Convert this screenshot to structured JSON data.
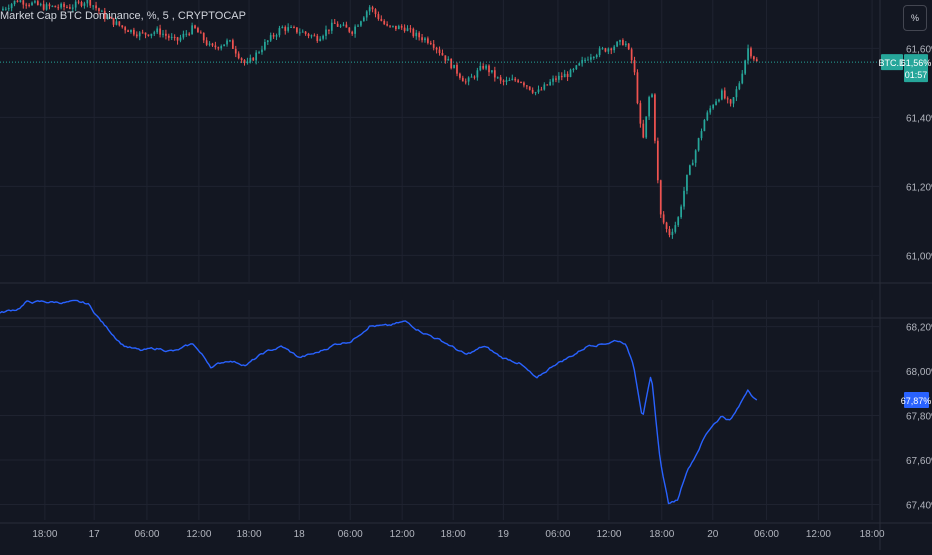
{
  "header": {
    "title": "Market Cap BTC Dominance, %, 5 , CRYPTOCAP",
    "scale_button": "%"
  },
  "colors": {
    "background": "#131722",
    "grid": "#1f2330",
    "up_candle": "#26a69a",
    "down_candle": "#ef5350",
    "price_line": "#26a69a",
    "lower_series": "#2962ff",
    "axis_text": "#b2b5be"
  },
  "chart_data": [
    {
      "type": "candlestick",
      "symbol_tag": "BTC.D",
      "last_value": "61,56%",
      "countdown": "01:57",
      "y_ticks": [
        {
          "value": 61.6,
          "label": "61,60%"
        },
        {
          "value": 61.4,
          "label": "61,40%"
        },
        {
          "value": 61.2,
          "label": "61,20%"
        },
        {
          "value": 61.0,
          "label": "61,00%"
        }
      ],
      "ylim": [
        60.92,
        61.74
      ],
      "last": 61.56,
      "path_x": [
        0,
        0.02,
        0.05,
        0.08,
        0.1,
        0.12,
        0.14,
        0.16,
        0.18,
        0.2,
        0.22,
        0.24,
        0.26,
        0.28,
        0.3,
        0.32,
        0.34,
        0.36,
        0.38,
        0.4,
        0.42,
        0.44,
        0.46,
        0.47,
        0.49,
        0.51,
        0.53,
        0.55,
        0.57,
        0.59,
        0.61,
        0.63,
        0.65,
        0.67,
        0.69,
        0.7,
        0.71,
        0.72,
        0.73,
        0.74,
        0.75,
        0.76,
        0.77,
        0.78,
        0.79,
        0.8,
        0.81,
        0.82,
        0.83,
        0.84,
        0.85,
        0.86
      ],
      "path_y": [
        61.71,
        61.74,
        61.72,
        61.72,
        61.74,
        61.69,
        61.66,
        61.64,
        61.65,
        61.62,
        61.66,
        61.6,
        61.62,
        61.55,
        61.61,
        61.66,
        61.65,
        61.63,
        61.67,
        61.65,
        61.72,
        61.66,
        61.66,
        61.64,
        61.62,
        61.56,
        61.5,
        61.55,
        61.5,
        61.51,
        61.47,
        61.51,
        61.53,
        61.58,
        61.6,
        61.61,
        61.62,
        61.55,
        61.32,
        61.5,
        61.12,
        61.06,
        61.1,
        61.22,
        61.3,
        61.39,
        61.44,
        61.47,
        61.43,
        61.5,
        61.6,
        61.56
      ]
    },
    {
      "type": "line",
      "last_value": "67,87%",
      "y_ticks": [
        {
          "value": 68.2,
          "label": "68,20%"
        },
        {
          "value": 68.0,
          "label": "68,00%"
        },
        {
          "value": 67.8,
          "label": "67,80%"
        },
        {
          "value": 67.6,
          "label": "67,60%"
        },
        {
          "value": 67.4,
          "label": "67,40%"
        }
      ],
      "ylim": [
        67.33,
        68.32
      ],
      "last": 67.87,
      "x": [
        0,
        0.02,
        0.03,
        0.08,
        0.1,
        0.12,
        0.14,
        0.16,
        0.18,
        0.2,
        0.22,
        0.24,
        0.26,
        0.28,
        0.3,
        0.32,
        0.34,
        0.36,
        0.38,
        0.4,
        0.42,
        0.44,
        0.46,
        0.47,
        0.49,
        0.51,
        0.53,
        0.55,
        0.57,
        0.59,
        0.61,
        0.63,
        0.65,
        0.67,
        0.69,
        0.7,
        0.71,
        0.72,
        0.73,
        0.74,
        0.75,
        0.76,
        0.77,
        0.78,
        0.79,
        0.8,
        0.81,
        0.82,
        0.83,
        0.84,
        0.85,
        0.86
      ],
      "y": [
        68.26,
        68.28,
        68.31,
        68.31,
        68.3,
        68.2,
        68.12,
        68.09,
        68.1,
        68.09,
        68.12,
        68.02,
        68.05,
        68.03,
        68.08,
        68.11,
        68.06,
        68.08,
        68.12,
        68.14,
        68.21,
        68.2,
        68.22,
        68.2,
        68.16,
        68.12,
        68.07,
        68.11,
        68.06,
        68.04,
        67.96,
        68.03,
        68.07,
        68.12,
        68.13,
        68.14,
        68.13,
        68.03,
        67.8,
        67.98,
        67.6,
        67.4,
        67.42,
        67.55,
        67.62,
        67.7,
        67.76,
        67.8,
        67.78,
        67.84,
        67.92,
        67.87
      ]
    }
  ],
  "time_axis": {
    "ticks": [
      {
        "label": "18:00",
        "pos": 0.051
      },
      {
        "label": "17",
        "pos": 0.107
      },
      {
        "label": "06:00",
        "pos": 0.167
      },
      {
        "label": "12:00",
        "pos": 0.226
      },
      {
        "label": "18:00",
        "pos": 0.283
      },
      {
        "label": "18",
        "pos": 0.34
      },
      {
        "label": "06:00",
        "pos": 0.398
      },
      {
        "label": "12:00",
        "pos": 0.457
      },
      {
        "label": "18:00",
        "pos": 0.515
      },
      {
        "label": "19",
        "pos": 0.572
      },
      {
        "label": "06:00",
        "pos": 0.634
      },
      {
        "label": "12:00",
        "pos": 0.692
      },
      {
        "label": "18:00",
        "pos": 0.752
      },
      {
        "label": "20",
        "pos": 0.81
      },
      {
        "label": "06:00",
        "pos": 0.871
      },
      {
        "label": "12:00",
        "pos": 0.93
      },
      {
        "label": "18:00",
        "pos": 0.991
      }
    ]
  }
}
